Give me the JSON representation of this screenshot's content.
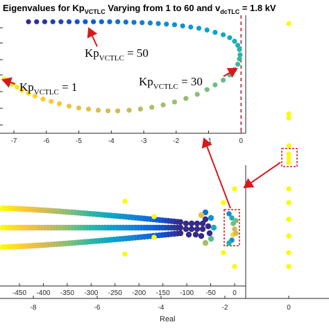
{
  "title": {
    "main": "Eigenvalues for Kp",
    "sub1": "VCTLC",
    "mid": " Varying from 1 to 60 and v",
    "sub2": "dcTLC",
    "tail": " = 1.8 kV"
  },
  "annotations": [
    {
      "id": "kp50",
      "main": "Kp",
      "sub": "VCTLC",
      "tail": " = 50"
    },
    {
      "id": "kp1",
      "main": "Kp",
      "sub": "VCTLC",
      "tail": " = 1"
    },
    {
      "id": "kp30",
      "main": "Kp",
      "sub": "VCTLC",
      "tail": " = 30"
    }
  ],
  "xlabel": "Real",
  "colors": {
    "arrow": "#d7191c",
    "dashed_line": "#b2182b",
    "dashed_box": "#d7191c",
    "colormap": [
      "#352a87",
      "#0f5cdd",
      "#1481d6",
      "#06a4ca",
      "#2eb7a4",
      "#87bf77",
      "#d1bb59",
      "#fec832",
      "#f9fb0e"
    ]
  },
  "chart_data": [
    {
      "id": "zoom-inset",
      "type": "scatter",
      "xlim": [
        -7.3,
        0.1
      ],
      "xticks": [
        "-7",
        "-6",
        "-5",
        "-4",
        "-3",
        "-2",
        "-1",
        "0"
      ],
      "xtick_values": [
        -7,
        -6,
        -5,
        -4,
        -3,
        -2,
        -1,
        0
      ],
      "ylim": [
        -1,
        1
      ],
      "vertical_reference_line_x": 0,
      "series": [
        {
          "x": [
            -7.3,
            -7.2,
            -7.05,
            -6.9,
            -6.75,
            -6.55,
            -6.35,
            -6.1,
            -5.85,
            -5.6,
            -5.3,
            -5.0,
            -4.7,
            -4.4,
            -4.1,
            -3.8,
            -3.45,
            -3.1,
            -2.75,
            -2.4,
            -2.05,
            -1.7,
            -1.35,
            -1.05,
            -0.8,
            -0.55,
            -0.35,
            -0.2,
            -0.1,
            -0.05,
            -0.03,
            -0.05,
            -0.1,
            -0.2,
            -0.35,
            -0.55,
            -0.8,
            -1.05,
            -1.3,
            -1.55,
            -1.8,
            -2.05,
            -2.3,
            -2.55,
            -2.8,
            -3.05,
            -3.3,
            -3.55,
            -3.8,
            -4.05,
            -4.3,
            -4.55,
            -4.8,
            -5.05,
            -5.3,
            -5.55,
            -5.8,
            -6.05,
            -6.3,
            -6.55
          ],
          "y": [
            -0.08,
            -0.12,
            -0.17,
            -0.22,
            -0.27,
            -0.32,
            -0.37,
            -0.42,
            -0.46,
            -0.5,
            -0.54,
            -0.57,
            -0.59,
            -0.61,
            -0.62,
            -0.62,
            -0.61,
            -0.59,
            -0.56,
            -0.52,
            -0.47,
            -0.41,
            -0.34,
            -0.26,
            -0.18,
            -0.1,
            -0.01,
            0.08,
            0.17,
            0.26,
            0.33,
            0.42,
            0.49,
            0.56,
            0.62,
            0.67,
            0.71,
            0.75,
            0.78,
            0.8,
            0.82,
            0.84,
            0.85,
            0.86,
            0.87,
            0.875,
            0.88,
            0.885,
            0.89,
            0.89,
            0.89,
            0.89,
            0.89,
            0.89,
            0.89,
            0.89,
            0.89,
            0.89,
            0.89,
            0.89
          ]
        }
      ]
    },
    {
      "id": "main-plot",
      "type": "scatter",
      "xlim": [
        -9,
        0.5
      ],
      "xticks": [
        "-8",
        "-6",
        "-4",
        "-2",
        "0"
      ],
      "xtick_values": [
        -8,
        -6,
        -4,
        -2,
        0
      ],
      "secondary_xticks": [
        "-450",
        "-400",
        "-350",
        "-300",
        "-250",
        "-200",
        "-150",
        "-100",
        "-50",
        "0"
      ],
      "secondary_xtick_values": [
        -450,
        -400,
        -350,
        -300,
        -250,
        -200,
        -150,
        -100,
        -50,
        0
      ],
      "xlabel": "Real",
      "ylim": [
        -1,
        1
      ]
    }
  ]
}
